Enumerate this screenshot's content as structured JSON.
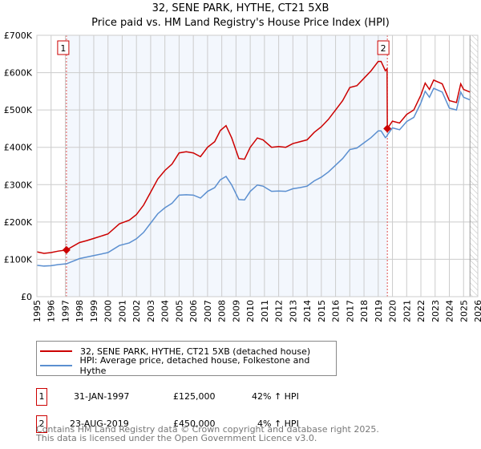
{
  "chart_data": {
    "type": "line",
    "title": "32, SENE PARK, HYTHE, CT21 5XB",
    "subtitle": "Price paid vs. HM Land Registry's House Price Index (HPI)",
    "xlim": [
      1995,
      2026
    ],
    "ylim": [
      0,
      700000
    ],
    "x_ticks": [
      "1995",
      "1996",
      "1997",
      "1998",
      "1999",
      "2000",
      "2001",
      "2002",
      "2003",
      "2004",
      "2005",
      "2006",
      "2007",
      "2008",
      "2009",
      "2010",
      "2011",
      "2012",
      "2013",
      "2014",
      "2015",
      "2016",
      "2017",
      "2018",
      "2019",
      "2020",
      "2021",
      "2022",
      "2023",
      "2024",
      "2025",
      "2026"
    ],
    "y_ticks": [
      {
        "v": 0,
        "label": "£0"
      },
      {
        "v": 100000,
        "label": "£100K"
      },
      {
        "v": 200000,
        "label": "£200K"
      },
      {
        "v": 300000,
        "label": "£300K"
      },
      {
        "v": 400000,
        "label": "£400K"
      },
      {
        "v": 500000,
        "label": "£500K"
      },
      {
        "v": 600000,
        "label": "£600K"
      },
      {
        "v": 700000,
        "label": "£700K"
      }
    ],
    "grid": true,
    "shaded_range": [
      1997.08,
      2019.64
    ],
    "forecast_hatch_from": 2025.45,
    "series": [
      {
        "name": "32, SENE PARK, HYTHE, CT21 5XB (detached house)",
        "color": "#cc0000",
        "x": [
          1995,
          1995.5,
          1996,
          1996.5,
          1997.08,
          1998,
          1998.5,
          1999,
          2000,
          2000.8,
          2001.5,
          2002,
          2002.5,
          2003,
          2003.5,
          2004,
          2004.5,
          2005,
          2005.5,
          2006,
          2006.5,
          2007,
          2007.5,
          2007.9,
          2008.3,
          2008.7,
          2009.2,
          2009.6,
          2010,
          2010.5,
          2010.9,
          2011.5,
          2012,
          2012.5,
          2013,
          2013.5,
          2014,
          2014.5,
          2015,
          2015.5,
          2016,
          2016.5,
          2017,
          2017.5,
          2018,
          2018.5,
          2019,
          2019.2,
          2019.5,
          2019.62,
          2019.64,
          2020,
          2020.5,
          2021,
          2021.5,
          2022,
          2022.3,
          2022.6,
          2022.9,
          2023.5,
          2024,
          2024.5,
          2024.8,
          2025,
          2025.45
        ],
        "y": [
          120000,
          116000,
          118000,
          122000,
          125000,
          145000,
          150000,
          156000,
          168000,
          195000,
          205000,
          220000,
          245000,
          280000,
          315000,
          338000,
          355000,
          385000,
          388000,
          385000,
          375000,
          400000,
          415000,
          445000,
          458000,
          425000,
          370000,
          368000,
          400000,
          425000,
          420000,
          400000,
          402000,
          400000,
          410000,
          415000,
          420000,
          440000,
          455000,
          475000,
          500000,
          525000,
          560000,
          565000,
          585000,
          605000,
          630000,
          630000,
          605000,
          610000,
          450000,
          470000,
          465000,
          488000,
          500000,
          540000,
          572000,
          555000,
          580000,
          570000,
          525000,
          520000,
          570000,
          555000,
          548000
        ]
      },
      {
        "name": "HPI: Average price, detached house, Folkestone and Hythe",
        "color": "#5b8fd0",
        "x": [
          1995,
          1995.5,
          1996,
          1996.5,
          1997.08,
          1998,
          1998.5,
          1999,
          2000,
          2000.8,
          2001.5,
          2002,
          2002.5,
          2003,
          2003.5,
          2004,
          2004.5,
          2005,
          2005.5,
          2006,
          2006.5,
          2007,
          2007.5,
          2007.9,
          2008.3,
          2008.7,
          2009.2,
          2009.6,
          2010,
          2010.5,
          2010.9,
          2011.5,
          2012,
          2012.5,
          2013,
          2013.5,
          2014,
          2014.5,
          2015,
          2015.5,
          2016,
          2016.5,
          2017,
          2017.5,
          2018,
          2018.5,
          2019,
          2019.2,
          2019.5,
          2019.62,
          2019.64,
          2020,
          2020.5,
          2021,
          2021.5,
          2022,
          2022.3,
          2022.6,
          2022.9,
          2023.5,
          2024,
          2024.5,
          2024.8,
          2025,
          2025.45
        ],
        "y": [
          84000,
          82000,
          83000,
          86000,
          88000,
          102000,
          106000,
          110000,
          118000,
          137000,
          144000,
          155000,
          172000,
          197000,
          222000,
          238000,
          250000,
          272000,
          273000,
          272000,
          264000,
          282000,
          292000,
          313000,
          322000,
          299000,
          260000,
          259000,
          282000,
          299000,
          296000,
          282000,
          283000,
          282000,
          289000,
          292000,
          296000,
          310000,
          320000,
          334000,
          352000,
          370000,
          394000,
          398000,
          412000,
          426000,
          444000,
          444000,
          426000,
          430000,
          433000,
          452000,
          447000,
          469000,
          480000,
          519000,
          550000,
          534000,
          558000,
          548000,
          505000,
          500000,
          548000,
          534000,
          527000
        ]
      }
    ],
    "sales": [
      {
        "id": "1",
        "x": 1997.08,
        "y": 125000,
        "date": "31-JAN-1997",
        "price": "£125,000",
        "hpi": "42% ↑ HPI"
      },
      {
        "id": "2",
        "x": 2019.64,
        "y": 450000,
        "date": "23-AUG-2019",
        "price": "£450,000",
        "hpi": "4% ↑ HPI"
      }
    ]
  },
  "footer": {
    "line1": "Contains HM Land Registry data © Crown copyright and database right 2025.",
    "line2": "This data is licensed under the Open Government Licence v3.0."
  }
}
